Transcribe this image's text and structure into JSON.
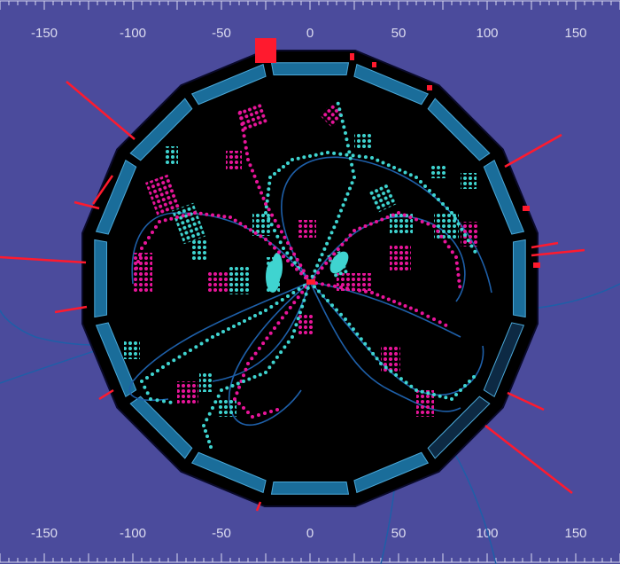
{
  "scale": {
    "ticks": [
      "-150",
      "-100",
      "-50",
      "0",
      "50",
      "100",
      "150"
    ]
  },
  "colors": {
    "background": "#4b4b9c",
    "detector": "#000000",
    "module": "#1a6d9a",
    "track": "#1e5fa8",
    "hit_magenta": "#e8159a",
    "hit_cyan": "#3fd4d0",
    "energy": "#ff1a2e"
  }
}
